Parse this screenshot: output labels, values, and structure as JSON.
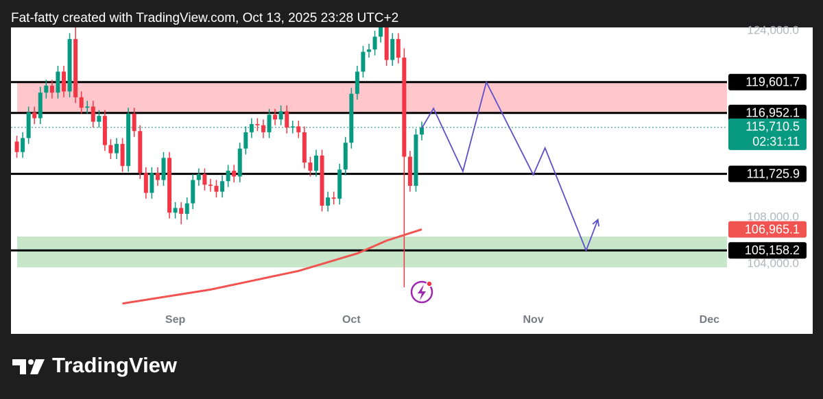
{
  "header": "Fat-fatty created with TradingView.com, Oct 13, 2025 23:28 UTC+2",
  "brand": "TradingView",
  "chart_data": {
    "type": "candlestick",
    "x": [
      217,
      218,
      219,
      220,
      221,
      222,
      223,
      224,
      225,
      226,
      227,
      228,
      229,
      230,
      231,
      232,
      233,
      234,
      235,
      236,
      237,
      238,
      239,
      240,
      241,
      242,
      243,
      244,
      245,
      246,
      247,
      248,
      249,
      250,
      251,
      252,
      253,
      254,
      255,
      256,
      257,
      258,
      259,
      260,
      261,
      262,
      263,
      264,
      265,
      266,
      267,
      268,
      269,
      270,
      271,
      272,
      273,
      274,
      275,
      276,
      277,
      278,
      279,
      280,
      281,
      282,
      283,
      284,
      285,
      286
    ],
    "open": [
      114500,
      113600,
      114800,
      117000,
      116500,
      118700,
      119300,
      118700,
      120500,
      118800,
      123300,
      118300,
      117400,
      117500,
      116200,
      116700,
      114200,
      113500,
      114300,
      112400,
      116900,
      115400,
      111800,
      110100,
      111800,
      111200,
      113100,
      108400,
      108800,
      108300,
      109200,
      111200,
      111700,
      110800,
      110700,
      110200,
      111100,
      112000,
      111500,
      113900,
      115300,
      116000,
      115900,
      115300,
      116800,
      116400,
      117100,
      115700,
      115800,
      115300,
      112700,
      112000,
      113300,
      109000,
      109700,
      109600,
      112100,
      114400,
      118600,
      120500,
      122200,
      122400,
      123500,
      124700,
      121500,
      123300,
      121700,
      113200,
      110700,
      115100
    ],
    "high": [
      115000,
      115300,
      117500,
      117500,
      119200,
      119800,
      119800,
      121000,
      121000,
      123800,
      124400,
      118800,
      118000,
      118000,
      117200,
      117200,
      114700,
      114800,
      114800,
      117400,
      117400,
      115900,
      112300,
      112300,
      112300,
      113600,
      113600,
      109300,
      109300,
      109700,
      111700,
      112200,
      112200,
      111300,
      111200,
      111600,
      112500,
      112500,
      114400,
      115800,
      116500,
      116500,
      116400,
      117300,
      117300,
      117600,
      117600,
      116300,
      116300,
      115800,
      113200,
      113800,
      113800,
      110200,
      110200,
      112600,
      114900,
      119100,
      121000,
      122700,
      122900,
      124000,
      125200,
      125200,
      123800,
      123800,
      122500,
      113700,
      115600,
      116200
    ],
    "low": [
      113100,
      113100,
      114300,
      116000,
      116000,
      118200,
      118200,
      118200,
      118300,
      118300,
      117800,
      116900,
      116900,
      115700,
      115700,
      113700,
      113000,
      113000,
      111900,
      111900,
      114900,
      111300,
      109600,
      109600,
      110700,
      110700,
      107900,
      107900,
      107400,
      107800,
      108700,
      110700,
      110300,
      110200,
      109700,
      109700,
      110600,
      111000,
      111000,
      113400,
      114800,
      115400,
      114800,
      114800,
      115900,
      115900,
      115200,
      115200,
      114800,
      112200,
      111500,
      111500,
      108500,
      108500,
      109100,
      109100,
      111600,
      113900,
      118100,
      120000,
      121700,
      121900,
      123000,
      121000,
      121000,
      121200,
      102000,
      110200,
      110200,
      114600
    ],
    "close": [
      113600,
      114800,
      117000,
      116500,
      118700,
      119300,
      118700,
      120500,
      118800,
      123300,
      118300,
      117400,
      117500,
      116200,
      116700,
      114200,
      113500,
      114300,
      112400,
      116900,
      115400,
      111800,
      110100,
      111800,
      111200,
      113100,
      108400,
      108800,
      108300,
      109200,
      111200,
      111700,
      110800,
      110700,
      110200,
      111100,
      112000,
      111500,
      113900,
      115300,
      116000,
      115900,
      115300,
      116800,
      116400,
      117100,
      115700,
      115800,
      115300,
      112700,
      112000,
      113300,
      109000,
      109700,
      109600,
      112100,
      114400,
      118600,
      120500,
      122200,
      122400,
      123500,
      124700,
      121500,
      123300,
      121700,
      113200,
      110700,
      115100,
      115710.5
    ],
    "up_color": "#089981",
    "down_color": "#f23645",
    "xlim": [
      216,
      338
    ],
    "xticks": [
      {
        "value": 244,
        "label": "Sep"
      },
      {
        "value": 274,
        "label": "Oct"
      },
      {
        "value": 305,
        "label": "Nov"
      },
      {
        "value": 335,
        "label": "Dec"
      }
    ],
    "ylim": [
      100176,
      124294
    ],
    "yticks": [
      {
        "value": 124000,
        "label": "124,000.0"
      },
      {
        "value": 108000,
        "label": "108,000.0"
      },
      {
        "value": 104000,
        "label": "104,000.0"
      }
    ],
    "levels": {
      "values": [
        119601.7,
        116952.1,
        111725.9,
        105158.2
      ],
      "value_labels": [
        "119,601.7",
        "116,952.1",
        "111,725.9",
        "105,158.2"
      ],
      "color": "#000000"
    },
    "zones": [
      {
        "range": [
          116900,
          119600
        ],
        "color": "#ffc7cc"
      },
      {
        "range": [
          103700,
          106350
        ],
        "color": "#c8e6c9"
      }
    ],
    "ma": {
      "x": [
        235,
        250,
        265,
        275,
        280,
        286
      ],
      "values": [
        100600,
        101800,
        103400,
        104900,
        106000,
        106965.1
      ],
      "value_label": "106,965.1",
      "color": "#f05350"
    },
    "projection": {
      "x": [
        286,
        288,
        293,
        297,
        305,
        307,
        314,
        316
      ],
      "values": [
        115650,
        117350,
        111950,
        119600,
        111650,
        113950,
        105150,
        107800
      ],
      "color": "#5b4fc9"
    },
    "last_price": {
      "value": 115710.5,
      "label": "115,710.5",
      "countdown": "02:31:11",
      "color": "#089981"
    }
  }
}
